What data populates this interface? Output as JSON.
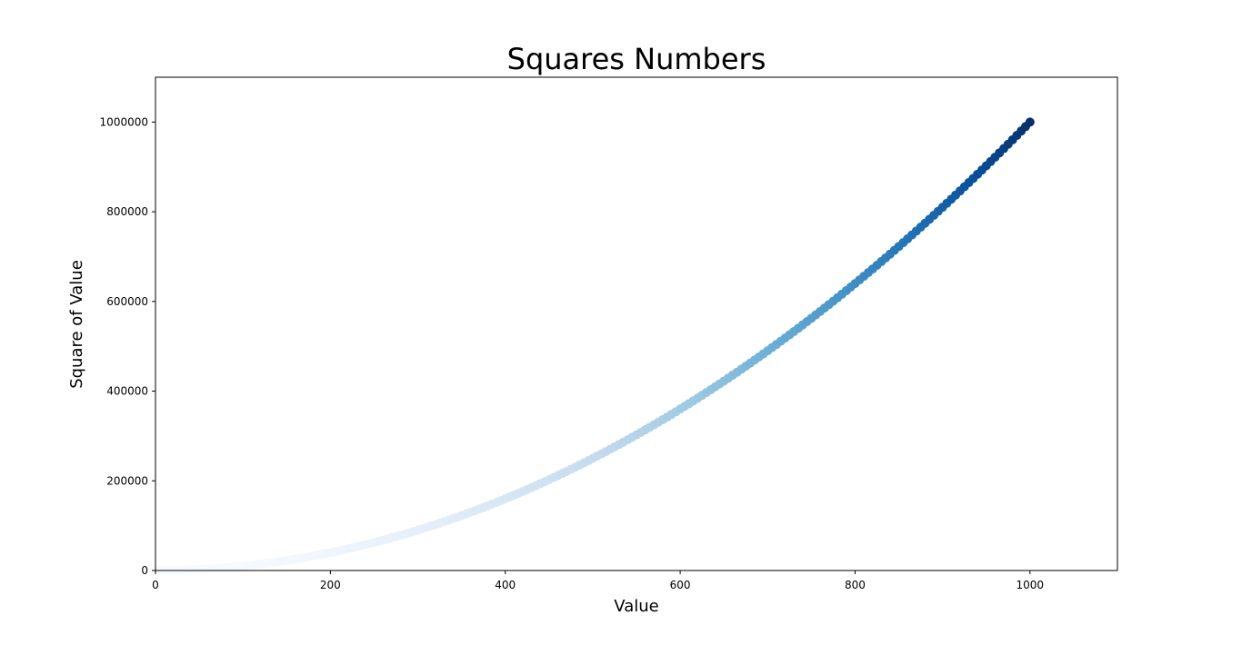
{
  "chart_data": {
    "type": "scatter",
    "title": "Squares Numbers",
    "x_label": "Value",
    "y_label": "Square of Value",
    "colors": [
      "#f7fbff",
      "#deebf7",
      "#c6dbef",
      "#9ecae1",
      "#6baed6",
      "#4292c6",
      "#2171b5",
      "#08519c",
      "#08306b"
    ],
    "xlim": [
      0,
      1100
    ],
    "ylim": [
      0,
      1100000
    ],
    "xticks": [
      0,
      200,
      400,
      600,
      800,
      1000
    ],
    "yticks": [
      0,
      200000,
      400000,
      600000,
      800000,
      1000000
    ],
    "x": [
      5,
      10,
      15,
      20,
      25,
      30,
      35,
      40,
      45,
      50,
      55,
      60,
      65,
      70,
      75,
      80,
      85,
      90,
      95,
      100,
      105,
      110,
      115,
      120,
      125,
      130,
      135,
      140,
      145,
      150,
      155,
      160,
      165,
      170,
      175,
      180,
      185,
      190,
      195,
      200,
      205,
      210,
      215,
      220,
      225,
      230,
      235,
      240,
      245,
      250,
      255,
      260,
      265,
      270,
      275,
      280,
      285,
      290,
      295,
      300,
      305,
      310,
      315,
      320,
      325,
      330,
      335,
      340,
      345,
      350,
      355,
      360,
      365,
      370,
      375,
      380,
      385,
      390,
      395,
      400,
      405,
      410,
      415,
      420,
      425,
      430,
      435,
      440,
      445,
      450,
      455,
      460,
      465,
      470,
      475,
      480,
      485,
      490,
      495,
      500,
      505,
      510,
      515,
      520,
      525,
      530,
      535,
      540,
      545,
      550,
      555,
      560,
      565,
      570,
      575,
      580,
      585,
      590,
      595,
      600,
      605,
      610,
      615,
      620,
      625,
      630,
      635,
      640,
      645,
      650,
      655,
      660,
      665,
      670,
      675,
      680,
      685,
      690,
      695,
      700,
      705,
      710,
      715,
      720,
      725,
      730,
      735,
      740,
      745,
      750,
      755,
      760,
      765,
      770,
      775,
      780,
      785,
      790,
      795,
      800,
      805,
      810,
      815,
      820,
      825,
      830,
      835,
      840,
      845,
      850,
      855,
      860,
      865,
      870,
      875,
      880,
      885,
      890,
      895,
      900,
      905,
      910,
      915,
      920,
      925,
      930,
      935,
      940,
      945,
      950,
      955,
      960,
      965,
      970,
      975,
      980,
      985,
      990,
      995,
      1000
    ],
    "values": [
      25,
      100,
      225,
      400,
      625,
      900,
      1225,
      1600,
      2025,
      2500,
      3025,
      3600,
      4225,
      4900,
      5625,
      6400,
      7225,
      8100,
      9025,
      10000,
      11025,
      12100,
      13225,
      14400,
      15625,
      16900,
      18225,
      19600,
      21025,
      22500,
      24025,
      25600,
      27225,
      28900,
      30625,
      32400,
      34225,
      36100,
      38025,
      40000,
      42025,
      44100,
      46225,
      48400,
      50625,
      52900,
      55225,
      57600,
      60025,
      62500,
      65025,
      67600,
      70225,
      72900,
      75625,
      78400,
      81225,
      84100,
      87025,
      90000,
      93025,
      96100,
      99225,
      102400,
      105625,
      108900,
      112225,
      115600,
      119025,
      122500,
      126025,
      129600,
      133225,
      136900,
      140625,
      144400,
      148225,
      152100,
      156025,
      160000,
      164025,
      168100,
      172225,
      176400,
      180625,
      184900,
      189225,
      193600,
      198025,
      202500,
      207025,
      211600,
      216225,
      220900,
      225625,
      230400,
      235225,
      240100,
      245025,
      250000,
      255025,
      260100,
      265225,
      270400,
      275625,
      280900,
      286225,
      291600,
      297025,
      302500,
      308025,
      313600,
      319225,
      324900,
      330625,
      336400,
      342225,
      348100,
      354025,
      360000,
      366025,
      372100,
      378225,
      384400,
      390625,
      396900,
      403225,
      409600,
      416025,
      422500,
      429025,
      435600,
      442225,
      448900,
      455625,
      462400,
      469225,
      476100,
      483025,
      490000,
      497025,
      504100,
      511225,
      518400,
      525625,
      532900,
      540225,
      547600,
      555025,
      562500,
      570025,
      577600,
      585225,
      592900,
      600625,
      608400,
      616225,
      624100,
      632025,
      640000,
      648025,
      656100,
      664225,
      672400,
      680625,
      688900,
      697225,
      705600,
      714025,
      722500,
      731025,
      739600,
      748225,
      756900,
      765625,
      774400,
      783225,
      792100,
      801025,
      810000,
      819025,
      828100,
      837225,
      846400,
      855625,
      864900,
      874225,
      883600,
      893025,
      902500,
      912025,
      921600,
      931225,
      940900,
      950625,
      960400,
      970225,
      980100,
      990025,
      1000000
    ]
  }
}
